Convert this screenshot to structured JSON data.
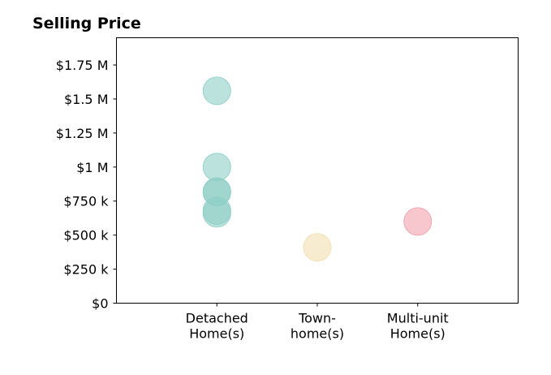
{
  "chart_data": {
    "type": "scatter",
    "title": "Selling Price",
    "xlabel": "",
    "ylabel": "",
    "categories": [
      [
        "Detached",
        "Home(s)"
      ],
      [
        "Town-",
        "home(s)"
      ],
      [
        "Multi-unit",
        "Home(s)"
      ]
    ],
    "y_ticks": [
      {
        "value": 0,
        "label": "$0"
      },
      {
        "value": 250000,
        "label": "$250 k"
      },
      {
        "value": 500000,
        "label": "$500 k"
      },
      {
        "value": 750000,
        "label": "$750 k"
      },
      {
        "value": 1000000,
        "label": "$1 M"
      },
      {
        "value": 1250000,
        "label": "$1.25 M"
      },
      {
        "value": 1500000,
        "label": "$1.5 M"
      },
      {
        "value": 1750000,
        "label": "$1.75 M"
      }
    ],
    "ylim": [
      0,
      1950000
    ],
    "xlim": [
      -1,
      3
    ],
    "grid": false,
    "series": [
      {
        "category_index": 0,
        "color": "#8fcfc6",
        "values": [
          1560000,
          1000000,
          820000,
          815000,
          680000,
          660000
        ]
      },
      {
        "category_index": 1,
        "color": "#f4dfb0",
        "values": [
          410000
        ]
      },
      {
        "category_index": 2,
        "color": "#f1a1ac",
        "values": [
          600000
        ]
      }
    ]
  }
}
